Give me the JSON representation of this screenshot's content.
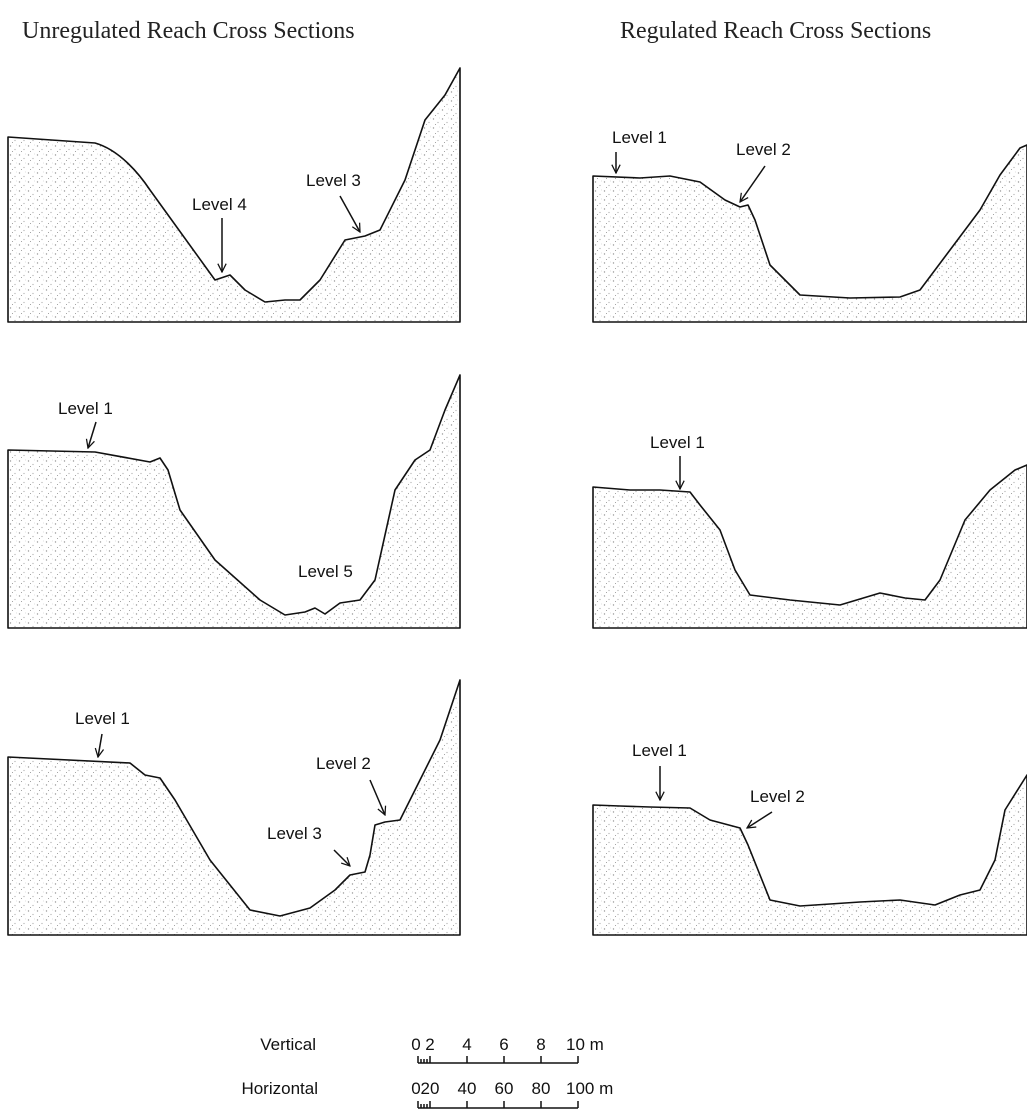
{
  "titles": {
    "left": "Unregulated Reach Cross Sections",
    "right": "Regulated Reach Cross Sections"
  },
  "unregulated": [
    {
      "labels": [
        "Level 4",
        "Level 3"
      ]
    },
    {
      "labels": [
        "Level 1",
        "Level 5"
      ]
    },
    {
      "labels": [
        "Level 1",
        "Level 2",
        "Level 3"
      ]
    }
  ],
  "regulated": [
    {
      "labels": [
        "Level 1",
        "Level 2"
      ]
    },
    {
      "labels": [
        "Level 1"
      ]
    },
    {
      "labels": [
        "Level 1",
        "Level 2"
      ]
    }
  ],
  "scale": {
    "vertical": {
      "name": "Vertical",
      "ticks": [
        "0",
        "2",
        "4",
        "6",
        "8",
        "10 m"
      ]
    },
    "horizontal": {
      "name": "Horizontal",
      "ticks": [
        "0",
        "20",
        "40",
        "60",
        "80",
        "100 m"
      ]
    }
  }
}
